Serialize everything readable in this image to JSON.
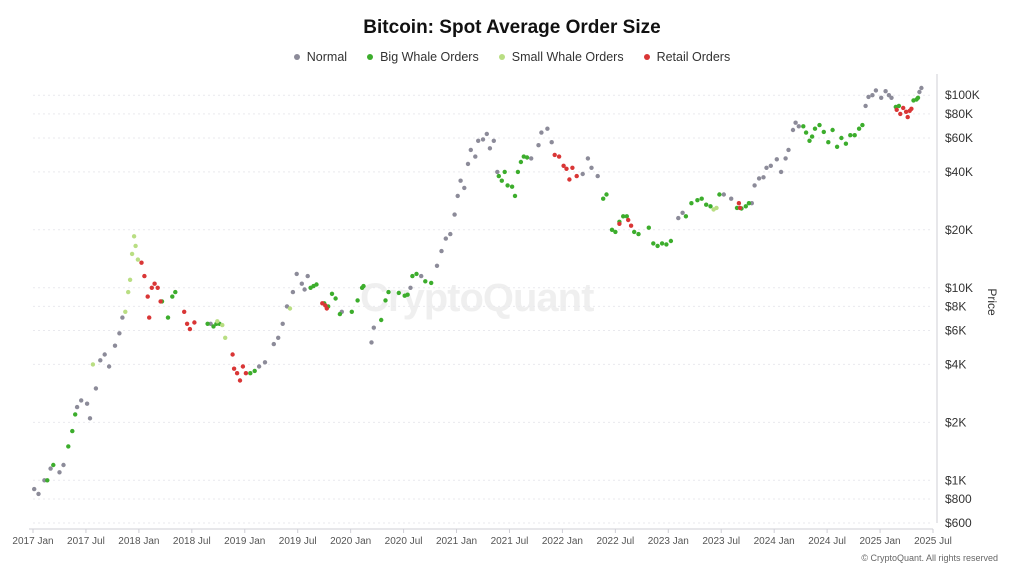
{
  "title": "Bitcoin: Spot Average Order Size",
  "watermark": "CryptoQuant",
  "credit": "© CryptoQuant. All rights reserved",
  "y_axis_label": "Price",
  "legend": [
    {
      "label": "Normal",
      "color": "#8c8b99"
    },
    {
      "label": "Big Whale Orders",
      "color": "#3cad2c"
    },
    {
      "label": "Small Whale Orders",
      "color": "#b9de83"
    },
    {
      "label": "Retail Orders",
      "color": "#d93636"
    }
  ],
  "chart_data": {
    "type": "scatter",
    "title": "Bitcoin: Spot Average Order Size",
    "ylabel": "Price",
    "yscale": "log",
    "ylim": [
      600,
      120000
    ],
    "xlim": [
      "2017-01",
      "2025-07"
    ],
    "x_ticks": [
      "2017 Jan",
      "2017 Jul",
      "2018 Jan",
      "2018 Jul",
      "2019 Jan",
      "2019 Jul",
      "2020 Jan",
      "2020 Jul",
      "2021 Jan",
      "2021 Jul",
      "2022 Jan",
      "2022 Jul",
      "2023 Jan",
      "2023 Jul",
      "2024 Jan",
      "2024 Jul",
      "2025 Jan",
      "2025 Jul"
    ],
    "y_ticks": [
      {
        "value": 600,
        "label": "$600"
      },
      {
        "value": 800,
        "label": "$800"
      },
      {
        "value": 1000,
        "label": "$1K"
      },
      {
        "value": 2000,
        "label": "$2K"
      },
      {
        "value": 4000,
        "label": "$4K"
      },
      {
        "value": 6000,
        "label": "$6K"
      },
      {
        "value": 8000,
        "label": "$8K"
      },
      {
        "value": 10000,
        "label": "$10K"
      },
      {
        "value": 20000,
        "label": "$20K"
      },
      {
        "value": 40000,
        "label": "$40K"
      },
      {
        "value": 60000,
        "label": "$60K"
      },
      {
        "value": 80000,
        "label": "$80K"
      },
      {
        "value": 100000,
        "label": "$100K"
      }
    ],
    "legend_position": "top-center",
    "grid": "horizontal",
    "series": [
      {
        "name": "Normal",
        "color": "#8c8b99",
        "points": [
          [
            "2017-01-05",
            900
          ],
          [
            "2017-01-20",
            850
          ],
          [
            "2017-02-10",
            1000
          ],
          [
            "2017-03-01",
            1150
          ],
          [
            "2017-04-01",
            1100
          ],
          [
            "2017-04-15",
            1200
          ],
          [
            "2017-06-01",
            2400
          ],
          [
            "2017-06-15",
            2600
          ],
          [
            "2017-07-05",
            2500
          ],
          [
            "2017-07-15",
            2100
          ],
          [
            "2017-08-05",
            3000
          ],
          [
            "2017-08-20",
            4200
          ],
          [
            "2017-09-05",
            4500
          ],
          [
            "2017-09-20",
            3900
          ],
          [
            "2017-10-10",
            5000
          ],
          [
            "2017-10-25",
            5800
          ],
          [
            "2017-11-05",
            7000
          ],
          [
            "2018-09-05",
            6500
          ],
          [
            "2019-02-20",
            3900
          ],
          [
            "2019-03-10",
            4100
          ],
          [
            "2019-04-10",
            5100
          ],
          [
            "2019-04-25",
            5500
          ],
          [
            "2019-05-10",
            6500
          ],
          [
            "2019-05-25",
            8000
          ],
          [
            "2019-06-15",
            9500
          ],
          [
            "2019-06-28",
            11800
          ],
          [
            "2019-07-15",
            10500
          ],
          [
            "2019-07-25",
            9800
          ],
          [
            "2019-08-05",
            11500
          ],
          [
            "2019-12-01",
            7500
          ],
          [
            "2020-03-12",
            5200
          ],
          [
            "2020-03-20",
            6200
          ],
          [
            "2020-07-25",
            10000
          ],
          [
            "2020-09-01",
            11500
          ],
          [
            "2020-10-25",
            13000
          ],
          [
            "2020-11-10",
            15500
          ],
          [
            "2020-11-25",
            18000
          ],
          [
            "2020-12-10",
            19000
          ],
          [
            "2020-12-25",
            24000
          ],
          [
            "2021-01-05",
            30000
          ],
          [
            "2021-01-15",
            36000
          ],
          [
            "2021-01-28",
            33000
          ],
          [
            "2021-02-10",
            44000
          ],
          [
            "2021-02-20",
            52000
          ],
          [
            "2021-03-05",
            48000
          ],
          [
            "2021-03-15",
            58000
          ],
          [
            "2021-04-01",
            59000
          ],
          [
            "2021-04-14",
            63000
          ],
          [
            "2021-04-25",
            53000
          ],
          [
            "2021-05-08",
            58000
          ],
          [
            "2021-05-20",
            40000
          ],
          [
            "2021-09-15",
            47000
          ],
          [
            "2021-10-10",
            55000
          ],
          [
            "2021-10-20",
            64000
          ],
          [
            "2021-11-10",
            67000
          ],
          [
            "2021-11-25",
            57000
          ],
          [
            "2022-03-10",
            39000
          ],
          [
            "2022-03-28",
            47000
          ],
          [
            "2022-04-10",
            42000
          ],
          [
            "2022-05-01",
            38000
          ],
          [
            "2023-02-05",
            23000
          ],
          [
            "2023-02-20",
            24500
          ],
          [
            "2023-07-10",
            30500
          ],
          [
            "2023-08-05",
            29000
          ],
          [
            "2023-10-15",
            27500
          ],
          [
            "2023-10-25",
            34000
          ],
          [
            "2023-11-10",
            37000
          ],
          [
            "2023-11-25",
            37500
          ],
          [
            "2023-12-05",
            42000
          ],
          [
            "2023-12-20",
            43000
          ],
          [
            "2024-01-10",
            46500
          ],
          [
            "2024-01-25",
            40000
          ],
          [
            "2024-02-10",
            47000
          ],
          [
            "2024-02-20",
            52000
          ],
          [
            "2024-03-05",
            66000
          ],
          [
            "2024-03-14",
            72000
          ],
          [
            "2024-03-25",
            69000
          ],
          [
            "2024-11-12",
            88000
          ],
          [
            "2024-11-22",
            98000
          ],
          [
            "2024-12-05",
            100000
          ],
          [
            "2024-12-17",
            106000
          ],
          [
            "2025-01-05",
            97000
          ],
          [
            "2025-01-20",
            105000
          ],
          [
            "2025-02-01",
            100000
          ],
          [
            "2025-02-10",
            97000
          ],
          [
            "2025-05-15",
            104000
          ],
          [
            "2025-05-22",
            109000
          ]
        ]
      },
      {
        "name": "Big Whale Orders",
        "color": "#3cad2c",
        "points": [
          [
            "2017-02-20",
            1000
          ],
          [
            "2017-03-10",
            1200
          ],
          [
            "2017-05-01",
            1500
          ],
          [
            "2017-05-15",
            1800
          ],
          [
            "2017-05-25",
            2200
          ],
          [
            "2018-03-20",
            8500
          ],
          [
            "2018-04-10",
            7000
          ],
          [
            "2018-04-25",
            9000
          ],
          [
            "2018-05-05",
            9500
          ],
          [
            "2018-08-25",
            6500
          ],
          [
            "2018-09-15",
            6300
          ],
          [
            "2018-09-25",
            6500
          ],
          [
            "2018-10-05",
            6500
          ],
          [
            "2019-01-20",
            3600
          ],
          [
            "2019-02-05",
            3700
          ],
          [
            "2019-08-15",
            10000
          ],
          [
            "2019-08-25",
            10200
          ],
          [
            "2019-09-05",
            10400
          ],
          [
            "2019-10-01",
            8300
          ],
          [
            "2019-10-15",
            8000
          ],
          [
            "2019-10-28",
            9300
          ],
          [
            "2019-11-10",
            8800
          ],
          [
            "2019-11-25",
            7300
          ],
          [
            "2020-01-05",
            7500
          ],
          [
            "2020-01-25",
            8600
          ],
          [
            "2020-02-10",
            10000
          ],
          [
            "2020-02-15",
            10200
          ],
          [
            "2020-04-15",
            6800
          ],
          [
            "2020-04-30",
            8600
          ],
          [
            "2020-05-10",
            9500
          ],
          [
            "2020-06-15",
            9400
          ],
          [
            "2020-07-05",
            9100
          ],
          [
            "2020-07-15",
            9200
          ],
          [
            "2020-08-01",
            11500
          ],
          [
            "2020-08-15",
            11800
          ],
          [
            "2020-09-15",
            10800
          ],
          [
            "2020-10-05",
            10600
          ],
          [
            "2021-05-25",
            38000
          ],
          [
            "2021-06-05",
            36000
          ],
          [
            "2021-06-15",
            40000
          ],
          [
            "2021-06-25",
            34000
          ],
          [
            "2021-07-10",
            33500
          ],
          [
            "2021-07-20",
            30000
          ],
          [
            "2021-07-30",
            40000
          ],
          [
            "2021-08-10",
            45000
          ],
          [
            "2021-08-20",
            48000
          ],
          [
            "2021-09-01",
            47500
          ],
          [
            "2022-05-20",
            29000
          ],
          [
            "2022-06-01",
            30500
          ],
          [
            "2022-06-20",
            20000
          ],
          [
            "2022-07-01",
            19500
          ],
          [
            "2022-07-15",
            22000
          ],
          [
            "2022-07-28",
            23500
          ],
          [
            "2022-08-10",
            23500
          ],
          [
            "2022-09-05",
            19500
          ],
          [
            "2022-09-20",
            19000
          ],
          [
            "2022-10-25",
            20500
          ],
          [
            "2022-11-10",
            17000
          ],
          [
            "2022-11-25",
            16500
          ],
          [
            "2022-12-10",
            17000
          ],
          [
            "2022-12-25",
            16800
          ],
          [
            "2023-01-10",
            17500
          ],
          [
            "2023-03-01",
            23500
          ],
          [
            "2023-03-20",
            27500
          ],
          [
            "2023-04-10",
            28500
          ],
          [
            "2023-04-25",
            29000
          ],
          [
            "2023-05-10",
            27000
          ],
          [
            "2023-05-25",
            26500
          ],
          [
            "2023-06-25",
            30500
          ],
          [
            "2023-08-25",
            26000
          ],
          [
            "2023-09-10",
            25800
          ],
          [
            "2023-09-25",
            26500
          ],
          [
            "2023-10-05",
            27500
          ],
          [
            "2024-04-10",
            69000
          ],
          [
            "2024-04-20",
            64000
          ],
          [
            "2024-05-01",
            58000
          ],
          [
            "2024-05-10",
            61000
          ],
          [
            "2024-05-20",
            67000
          ],
          [
            "2024-06-05",
            70000
          ],
          [
            "2024-06-20",
            64500
          ],
          [
            "2024-07-05",
            57000
          ],
          [
            "2024-07-20",
            66000
          ],
          [
            "2024-08-05",
            54000
          ],
          [
            "2024-08-20",
            60000
          ],
          [
            "2024-09-05",
            56000
          ],
          [
            "2024-09-20",
            62000
          ],
          [
            "2024-10-05",
            62000
          ],
          [
            "2024-10-20",
            67000
          ],
          [
            "2024-11-01",
            70000
          ],
          [
            "2025-02-25",
            87000
          ],
          [
            "2025-03-05",
            88000
          ],
          [
            "2025-04-25",
            94000
          ],
          [
            "2025-05-05",
            95000
          ],
          [
            "2025-05-10",
            97000
          ]
        ]
      },
      {
        "name": "Small Whale Orders",
        "color": "#b9de83",
        "points": [
          [
            "2017-07-25",
            4000
          ],
          [
            "2017-11-15",
            7500
          ],
          [
            "2017-11-25",
            9500
          ],
          [
            "2017-12-01",
            11000
          ],
          [
            "2017-12-08",
            15000
          ],
          [
            "2017-12-15",
            18500
          ],
          [
            "2017-12-20",
            16500
          ],
          [
            "2017-12-28",
            14000
          ],
          [
            "2018-09-28",
            6700
          ],
          [
            "2018-10-15",
            6400
          ],
          [
            "2018-10-25",
            5500
          ],
          [
            "2019-06-05",
            7800
          ],
          [
            "2023-06-05",
            25500
          ],
          [
            "2023-06-15",
            26000
          ]
        ]
      },
      {
        "name": "Retail Orders",
        "color": "#d93636",
        "points": [
          [
            "2018-01-10",
            13500
          ],
          [
            "2018-01-20",
            11500
          ],
          [
            "2018-02-01",
            9000
          ],
          [
            "2018-02-06",
            7000
          ],
          [
            "2018-02-15",
            10000
          ],
          [
            "2018-02-25",
            10500
          ],
          [
            "2018-03-05",
            10000
          ],
          [
            "2018-03-15",
            8500
          ],
          [
            "2018-06-05",
            7500
          ],
          [
            "2018-06-15",
            6500
          ],
          [
            "2018-06-25",
            6100
          ],
          [
            "2018-07-10",
            6600
          ],
          [
            "2018-11-20",
            4500
          ],
          [
            "2018-11-25",
            3800
          ],
          [
            "2018-12-05",
            3600
          ],
          [
            "2018-12-15",
            3300
          ],
          [
            "2018-12-25",
            3900
          ],
          [
            "2019-01-05",
            3600
          ],
          [
            "2019-09-25",
            8300
          ],
          [
            "2019-10-05",
            8100
          ],
          [
            "2019-10-10",
            7800
          ],
          [
            "2021-12-05",
            49000
          ],
          [
            "2021-12-20",
            48000
          ],
          [
            "2022-01-05",
            43000
          ],
          [
            "2022-01-15",
            41500
          ],
          [
            "2022-01-25",
            36500
          ],
          [
            "2022-02-05",
            42000
          ],
          [
            "2022-02-20",
            38000
          ],
          [
            "2022-07-15",
            21500
          ],
          [
            "2022-08-15",
            22500
          ],
          [
            "2022-08-25",
            21000
          ],
          [
            "2023-09-01",
            27500
          ],
          [
            "2023-09-05",
            26000
          ],
          [
            "2025-02-28",
            84000
          ],
          [
            "2025-03-10",
            80000
          ],
          [
            "2025-03-20",
            86000
          ],
          [
            "2025-03-30",
            82000
          ],
          [
            "2025-04-05",
            77000
          ],
          [
            "2025-04-12",
            83000
          ],
          [
            "2025-04-18",
            85000
          ]
        ]
      }
    ]
  }
}
